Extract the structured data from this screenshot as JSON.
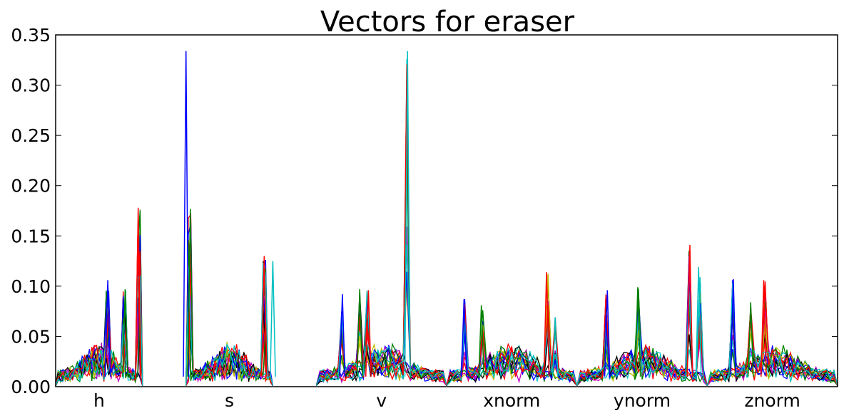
{
  "chart_data": {
    "type": "line",
    "title": "Vectors for eraser",
    "xlabel": "",
    "ylabel": "",
    "ylim": [
      0,
      0.35
    ],
    "yticks": [
      "0.00",
      "0.05",
      "0.10",
      "0.15",
      "0.20",
      "0.25",
      "0.30",
      "0.35"
    ],
    "grid": false,
    "x_range": [
      0,
      180
    ],
    "colors": [
      "#0000ff",
      "#008000",
      "#ff0000",
      "#00bfbf",
      "#bf00bf",
      "#bfbf00",
      "#000000"
    ],
    "groups": [
      {
        "label": "h",
        "x_start": 0,
        "x_end": 20,
        "peaks": [
          {
            "x": 12,
            "y": 0.106
          },
          {
            "x": 16,
            "y": 0.097
          },
          {
            "x": 19,
            "y": 0.178
          }
        ]
      },
      {
        "label": "s",
        "x_start": 30,
        "x_end": 50,
        "peaks": [
          {
            "x": 30,
            "y": 0.334
          },
          {
            "x": 31,
            "y": 0.177
          },
          {
            "x": 48,
            "y": 0.13
          },
          {
            "x": 50,
            "y": 0.125
          }
        ]
      },
      {
        "label": "v",
        "x_start": 60,
        "x_end": 90,
        "peaks": [
          {
            "x": 66,
            "y": 0.092
          },
          {
            "x": 70,
            "y": 0.097
          },
          {
            "x": 72,
            "y": 0.096
          },
          {
            "x": 81,
            "y": 0.334
          }
        ]
      },
      {
        "label": "xnorm",
        "x_start": 90,
        "x_end": 120,
        "peaks": [
          {
            "x": 94,
            "y": 0.087
          },
          {
            "x": 98,
            "y": 0.081
          },
          {
            "x": 113,
            "y": 0.114
          },
          {
            "x": 115,
            "y": 0.069
          }
        ]
      },
      {
        "label": "ynorm",
        "x_start": 120,
        "x_end": 150,
        "peaks": [
          {
            "x": 127,
            "y": 0.096
          },
          {
            "x": 134,
            "y": 0.099
          },
          {
            "x": 146,
            "y": 0.141
          },
          {
            "x": 148,
            "y": 0.119
          }
        ]
      },
      {
        "label": "znorm",
        "x_start": 150,
        "x_end": 180,
        "peaks": [
          {
            "x": 156,
            "y": 0.107
          },
          {
            "x": 160,
            "y": 0.084
          },
          {
            "x": 163,
            "y": 0.106
          }
        ]
      }
    ]
  }
}
